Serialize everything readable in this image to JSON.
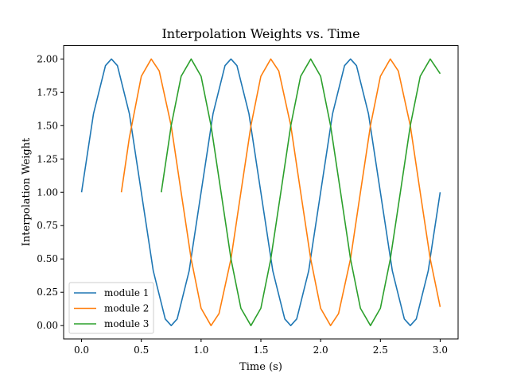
{
  "chart_data": {
    "type": "line",
    "title": "Interpolation Weights vs. Time",
    "xlabel": "Time (s)",
    "ylabel": "Interpolation Weight",
    "xlim": [
      -0.15,
      3.15
    ],
    "ylim": [
      -0.1,
      2.1
    ],
    "xticks": [
      0.0,
      0.5,
      1.0,
      1.5,
      2.0,
      2.5,
      3.0
    ],
    "xtick_labels": [
      "0.0",
      "0.5",
      "1.0",
      "1.5",
      "2.0",
      "2.5",
      "3.0"
    ],
    "yticks": [
      0.0,
      0.25,
      0.5,
      0.75,
      1.0,
      1.25,
      1.5,
      1.75,
      2.0
    ],
    "ytick_labels": [
      "0.00",
      "0.25",
      "0.50",
      "0.75",
      "1.00",
      "1.25",
      "1.50",
      "1.75",
      "2.00"
    ],
    "grid": false,
    "legend_position": "lower-left",
    "series": [
      {
        "name": "module 1",
        "color": "#1f77b4",
        "x": [
          0.0,
          0.1,
          0.2,
          0.25,
          0.3,
          0.4,
          0.5,
          0.6,
          0.7,
          0.75,
          0.8,
          0.9,
          1.0,
          1.1,
          1.2,
          1.25,
          1.3,
          1.4,
          1.5,
          1.6,
          1.7,
          1.75,
          1.8,
          1.9,
          2.0,
          2.1,
          2.2,
          2.25,
          2.3,
          2.4,
          2.5,
          2.6,
          2.7,
          2.75,
          2.8,
          2.9,
          3.0
        ],
        "y": [
          1.0,
          1.59,
          1.95,
          2.0,
          1.95,
          1.59,
          1.0,
          0.41,
          0.05,
          0.0,
          0.05,
          0.41,
          1.0,
          1.59,
          1.95,
          2.0,
          1.95,
          1.59,
          1.0,
          0.41,
          0.05,
          0.0,
          0.05,
          0.41,
          1.0,
          1.59,
          1.95,
          2.0,
          1.95,
          1.59,
          1.0,
          0.41,
          0.05,
          0.0,
          0.05,
          0.41,
          1.0
        ]
      },
      {
        "name": "module 2",
        "color": "#ff7f0e",
        "x": [
          0.333,
          0.4,
          0.5,
          0.583,
          0.65,
          0.75,
          0.833,
          0.917,
          1.0,
          1.083,
          1.15,
          1.25,
          1.333,
          1.417,
          1.5,
          1.583,
          1.65,
          1.75,
          1.833,
          1.917,
          2.0,
          2.083,
          2.15,
          2.25,
          2.333,
          2.417,
          2.5,
          2.583,
          2.65,
          2.75,
          2.833,
          2.917,
          3.0
        ],
        "y": [
          1.0,
          1.41,
          1.87,
          2.0,
          1.91,
          1.5,
          1.0,
          0.5,
          0.13,
          0.0,
          0.09,
          0.5,
          1.0,
          1.5,
          1.87,
          2.0,
          1.91,
          1.5,
          1.0,
          0.5,
          0.13,
          0.0,
          0.09,
          0.5,
          1.0,
          1.5,
          1.87,
          2.0,
          1.91,
          1.5,
          1.0,
          0.5,
          0.14
        ]
      },
      {
        "name": "module 3",
        "color": "#2ca02c",
        "x": [
          0.667,
          0.75,
          0.833,
          0.917,
          1.0,
          1.083,
          1.167,
          1.25,
          1.333,
          1.417,
          1.5,
          1.583,
          1.667,
          1.75,
          1.833,
          1.917,
          2.0,
          2.083,
          2.167,
          2.25,
          2.333,
          2.417,
          2.5,
          2.583,
          2.667,
          2.75,
          2.833,
          2.917,
          3.0
        ],
        "y": [
          1.0,
          1.5,
          1.87,
          2.0,
          1.87,
          1.5,
          1.0,
          0.5,
          0.13,
          0.0,
          0.13,
          0.5,
          1.0,
          1.5,
          1.87,
          2.0,
          1.87,
          1.5,
          1.0,
          0.5,
          0.13,
          0.0,
          0.13,
          0.5,
          1.0,
          1.5,
          1.87,
          2.0,
          1.89
        ]
      }
    ]
  }
}
